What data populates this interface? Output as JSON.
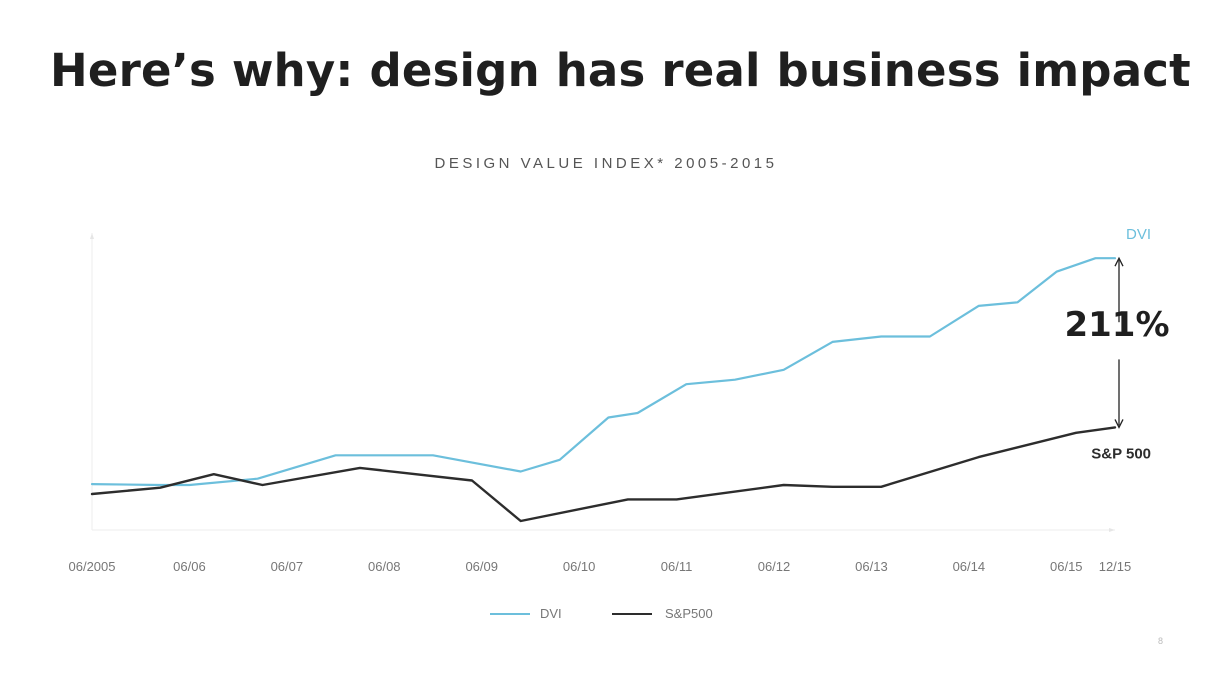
{
  "slide": {
    "title": "Here’s why: design has real business impact",
    "page_number": "8"
  },
  "chart_data": {
    "type": "line",
    "title": "DESIGN VALUE INDEX* 2005-2015",
    "x_tick_labels": [
      "06/2005",
      "06/06",
      "06/07",
      "06/08",
      "06/09",
      "06/10",
      "06/11",
      "06/12",
      "06/13",
      "06/14",
      "06/15",
      "12/15"
    ],
    "x_ticks": [
      0,
      1,
      2,
      3,
      4,
      5,
      6,
      7,
      8,
      9,
      10,
      10.5
    ],
    "xlim": [
      0,
      10.5
    ],
    "ylim": [
      0,
      3.3
    ],
    "grid": false,
    "legend": "bottom-center",
    "series": [
      {
        "name": "DVI",
        "color": "#6cbfdc",
        "end_label": "DVI",
        "x": [
          0,
          0.7,
          1.0,
          1.7,
          2.5,
          3.5,
          4.4,
          4.8,
          5.3,
          5.6,
          6.1,
          6.6,
          7.1,
          7.6,
          8.1,
          8.6,
          9.1,
          9.5,
          9.9,
          10.3,
          10.5
        ],
        "y": [
          0.51,
          0.5,
          0.5,
          0.57,
          0.83,
          0.83,
          0.65,
          0.78,
          1.25,
          1.3,
          1.62,
          1.67,
          1.78,
          2.09,
          2.15,
          2.15,
          2.49,
          2.53,
          2.87,
          3.02,
          3.02
        ]
      },
      {
        "name": "S&P500",
        "color": "#2d2d2d",
        "end_label": "S&P 500",
        "x": [
          0,
          0.7,
          1.25,
          1.75,
          2.75,
          3.9,
          4.4,
          5.5,
          6.0,
          7.1,
          7.6,
          8.1,
          9.1,
          10.1,
          10.5
        ],
        "y": [
          0.4,
          0.47,
          0.62,
          0.5,
          0.69,
          0.55,
          0.1,
          0.34,
          0.34,
          0.5,
          0.48,
          0.48,
          0.81,
          1.08,
          1.14
        ]
      }
    ],
    "annotation": {
      "text": "211%",
      "between": [
        "S&P500",
        "DVI"
      ]
    }
  }
}
